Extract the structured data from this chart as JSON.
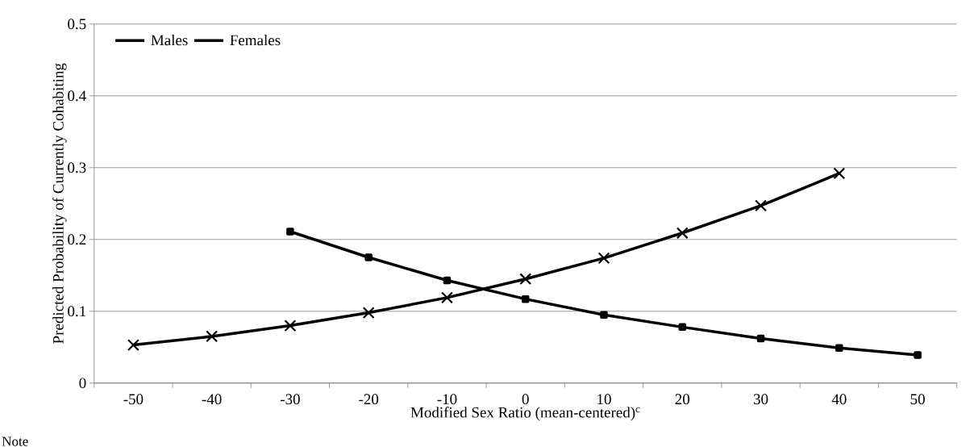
{
  "chart_data": {
    "type": "line",
    "xlabel": "Modified Sex Ratio (mean-centered)$^{c}$",
    "ylabel": "Predicted Probability of Currently Cohabiting",
    "categories": [
      "-50",
      "-40",
      "-30",
      "-20",
      "-10",
      "0",
      "10",
      "20",
      "30",
      "40",
      "50"
    ],
    "series": [
      {
        "name": "Males",
        "color": "#000000",
        "marker": "square",
        "values": [
          null,
          null,
          0.211,
          0.175,
          0.143,
          0.117,
          0.095,
          0.078,
          0.062,
          0.049,
          0.039
        ]
      },
      {
        "name": "Females",
        "color": "#000000",
        "marker": "cross",
        "values": [
          0.053,
          0.065,
          0.08,
          0.098,
          0.119,
          0.145,
          0.174,
          0.209,
          0.247,
          0.292,
          null
        ]
      }
    ],
    "ylim": [
      0,
      0.5
    ],
    "yticks": [
      0,
      0.1,
      0.2,
      0.3,
      0.4,
      0.5
    ],
    "grid": "y",
    "legend": "top left",
    "line_style": "solid",
    "annotations": [
      "Note"
    ]
  }
}
